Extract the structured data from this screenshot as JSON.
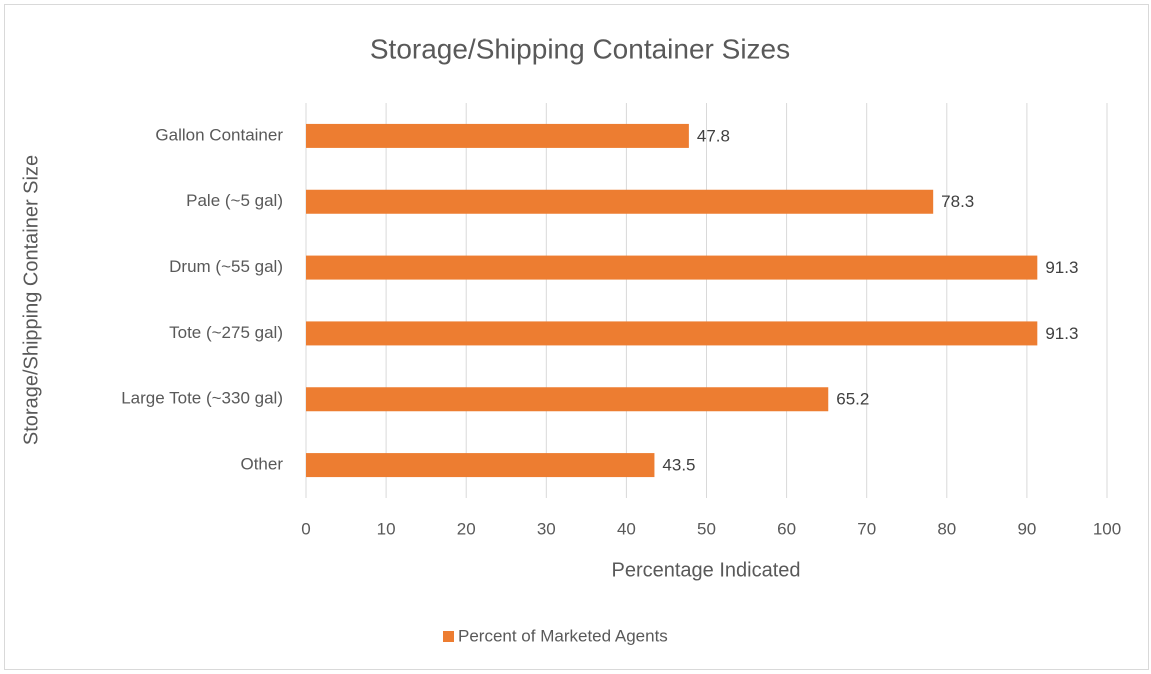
{
  "chart_data": {
    "type": "bar",
    "orientation": "horizontal",
    "title": "Storage/Shipping Container Sizes",
    "x_label": "Percentage Indicated",
    "y_label": "Storage/Shipping Container Size",
    "categories": [
      "Gallon Container",
      "Pale (~5 gal)",
      "Drum (~55 gal)",
      "Tote (~275 gal)",
      "Large Tote (~330 gal)",
      "Other"
    ],
    "series": [
      {
        "name": "Percent of Marketed Agents",
        "color": "#ed7d31",
        "values": [
          47.8,
          78.3,
          91.3,
          91.3,
          65.2,
          43.5
        ]
      }
    ],
    "xlim": [
      0,
      100
    ],
    "xticks": [
      0,
      10,
      20,
      30,
      40,
      50,
      60,
      70,
      80,
      90,
      100
    ],
    "grid": true,
    "legend": "bottom"
  }
}
